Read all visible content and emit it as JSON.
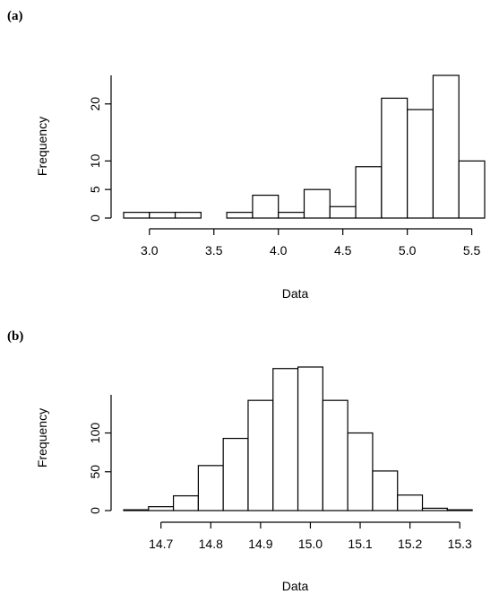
{
  "panels": [
    {
      "label": "(a)",
      "chart_data": {
        "type": "bar",
        "title": "",
        "xlabel": "Data",
        "ylabel": "Frequency",
        "bin_width": 0.1,
        "bins_start": [
          2.8,
          2.9,
          3.0,
          3.1,
          3.2,
          3.3,
          3.4,
          3.5,
          3.6,
          3.7,
          3.8,
          3.9,
          4.0,
          4.1,
          4.2,
          4.3,
          4.4,
          4.5,
          4.6,
          4.7,
          4.8,
          4.9,
          5.0,
          5.1,
          5.2,
          5.3,
          5.4,
          5.5
        ],
        "counts": [
          1,
          1,
          1,
          1,
          1,
          1,
          0,
          0,
          1,
          1,
          4,
          4,
          1,
          1,
          5,
          5,
          2,
          2,
          9,
          9,
          21,
          21,
          19,
          19,
          25,
          25,
          10,
          10
        ],
        "xlim": [
          2.8,
          5.6
        ],
        "ylim": [
          0,
          25
        ],
        "xticks": [
          "3.0",
          "3.5",
          "4.0",
          "4.5",
          "5.0",
          "5.5"
        ],
        "xtick_values": [
          3.0,
          3.5,
          4.0,
          4.5,
          5.0,
          5.5
        ],
        "yticks": [
          "0",
          "5",
          "10",
          "20"
        ],
        "ytick_values": [
          0,
          5,
          10,
          20
        ],
        "grid": false
      }
    },
    {
      "label": "(b)",
      "chart_data": {
        "type": "bar",
        "title": "",
        "xlabel": "Data",
        "ylabel": "Frequency",
        "bin_width": 0.025,
        "bins_start": [
          14.625,
          14.65,
          14.675,
          14.7,
          14.725,
          14.75,
          14.775,
          14.8,
          14.825,
          14.85,
          14.875,
          14.9,
          14.925,
          14.95,
          14.975,
          15.0,
          15.025,
          15.05,
          15.075,
          15.1,
          15.125,
          15.15,
          15.175,
          15.2,
          15.225,
          15.25,
          15.275,
          15.3,
          15.325
        ],
        "counts": [
          1,
          1,
          5,
          5,
          19,
          19,
          58,
          58,
          93,
          93,
          142,
          142,
          183,
          183,
          185,
          185,
          142,
          142,
          100,
          100,
          51,
          51,
          20,
          20,
          3,
          3,
          1,
          1,
          0
        ],
        "xlim": [
          14.625,
          15.35
        ],
        "ylim": [
          0,
          150
        ],
        "xticks": [
          "14.7",
          "14.8",
          "14.9",
          "15.0",
          "15.1",
          "15.2",
          "15.3"
        ],
        "xtick_values": [
          14.7,
          14.8,
          14.9,
          15.0,
          15.1,
          15.2,
          15.3
        ],
        "yticks": [
          "0",
          "50",
          "100"
        ],
        "ytick_values": [
          0,
          50,
          100
        ],
        "grid": false
      }
    }
  ]
}
